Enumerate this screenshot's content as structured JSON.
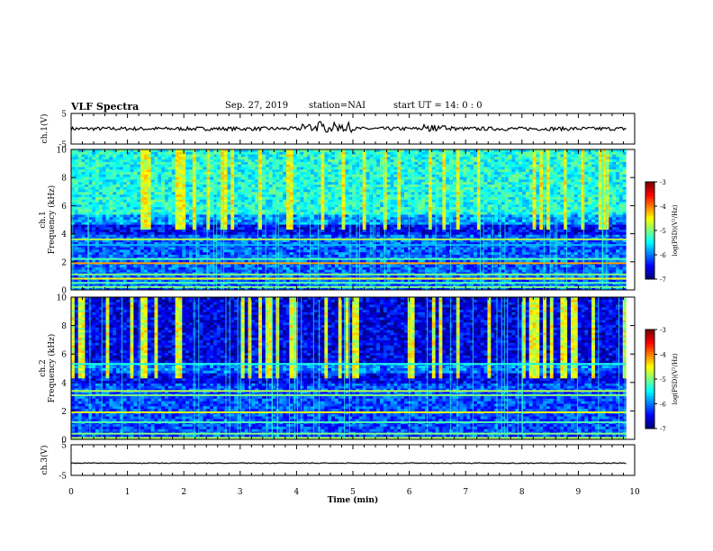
{
  "header": {
    "title": "VLF Spectra",
    "date": "Sep. 27, 2019",
    "station": "station=NAI",
    "start_time": "start UT =  14: 0  : 0"
  },
  "chart_data": {
    "type": "heatmap",
    "title": "VLF Spectra",
    "xlabel": "Time (min)",
    "xlim": [
      0,
      10
    ],
    "x_ticks": [
      "0",
      "1",
      "2",
      "3",
      "4",
      "5",
      "6",
      "7",
      "8",
      "9",
      "10"
    ],
    "colormap": "jet",
    "panels": [
      {
        "kind": "waveform",
        "ylabel": "ch.1(V)",
        "ylim": [
          -5,
          5
        ],
        "y_ticks": [
          "5",
          "-5"
        ],
        "approx_level": 0
      },
      {
        "kind": "spectrogram",
        "ylabel_top": "ch.1",
        "ylabel": "Frequency (kHz)",
        "ylim": [
          0,
          10
        ],
        "y_ticks": [
          "0",
          "2",
          "4",
          "6",
          "8",
          "10"
        ],
        "colorbar_label": "log(PSD)(V²/Hz)",
        "colorbar_range": [
          -7,
          -3
        ],
        "colorbar_ticks": [
          "-3",
          "-4",
          "-5",
          "-6",
          "-7"
        ]
      },
      {
        "kind": "spectrogram",
        "ylabel_top": "ch.2",
        "ylabel": "Frequency (kHz)",
        "ylim": [
          0,
          10
        ],
        "y_ticks": [
          "0",
          "2",
          "4",
          "6",
          "8",
          "10"
        ],
        "colorbar_label": "log(PSD)(V²/Hz)",
        "colorbar_range": [
          -7,
          -3
        ],
        "colorbar_ticks": [
          "-3",
          "-4",
          "-5",
          "-6",
          "-7"
        ]
      },
      {
        "kind": "waveform",
        "ylabel": "ch.3(V)",
        "ylim": [
          -5,
          5
        ],
        "y_ticks": [
          "5",
          "-5"
        ],
        "approx_level": -1
      }
    ]
  }
}
